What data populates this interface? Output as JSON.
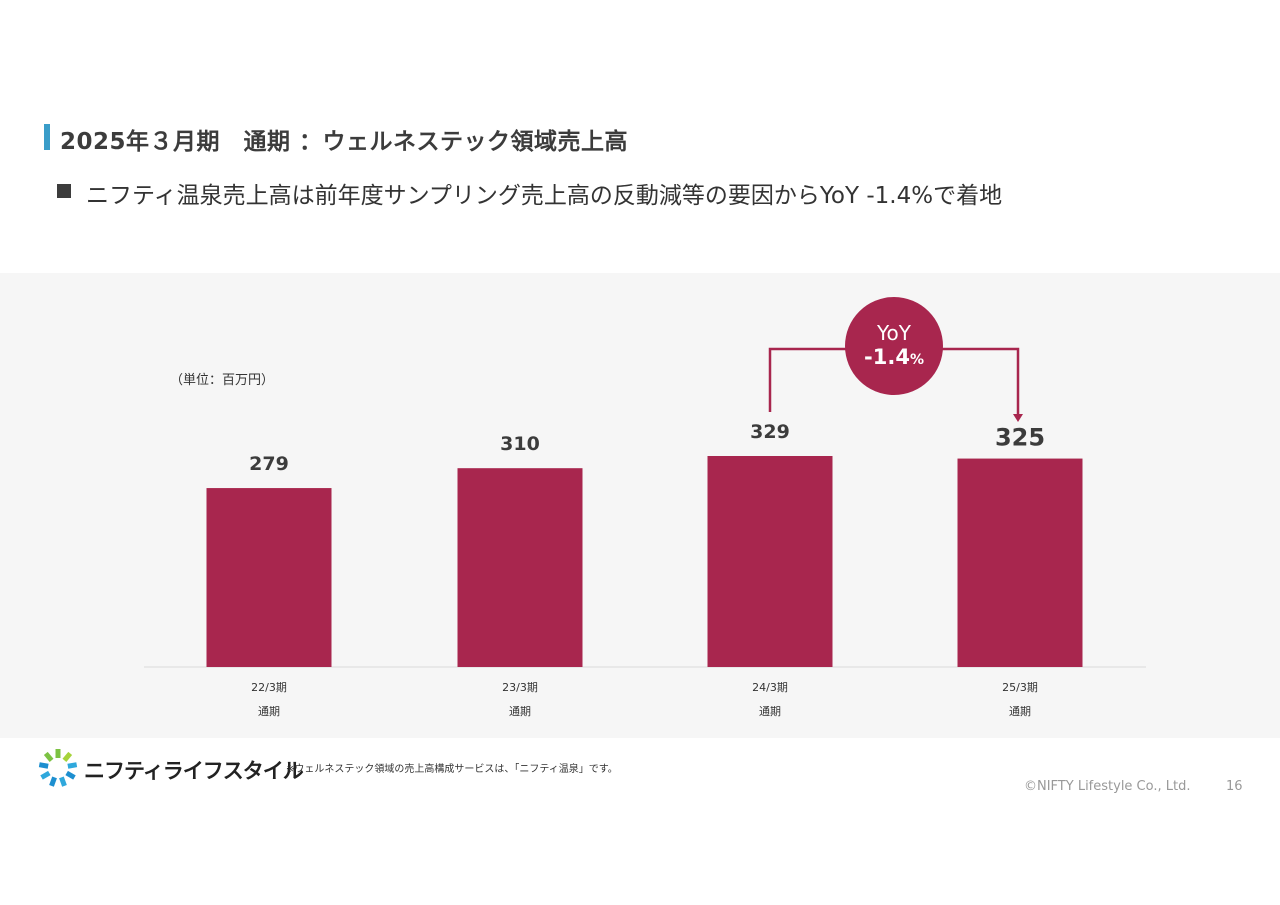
{
  "header": {
    "title": "2025年３月期　通期 ：ウェルネステック領域売上高",
    "bullet": "ニフティ温泉売上高は前年度サンプリング売上高の反動減等の要因からYoY -1.4%で着地"
  },
  "chart_data": {
    "type": "bar",
    "unit_label": "（単位：百万円）",
    "categories": [
      [
        "22/3期",
        "通期"
      ],
      [
        "23/3期",
        "通期"
      ],
      [
        "24/3期",
        "通期"
      ],
      [
        "25/3期",
        "通期"
      ]
    ],
    "values": [
      279,
      310,
      329,
      325
    ],
    "value_labels": [
      "279",
      "310",
      "329",
      "325"
    ],
    "bar_color": "#a8264e",
    "ylim": [
      0,
      400
    ],
    "annotation": {
      "line1": "YoY",
      "line2_value": "-1.4",
      "line2_unit": "%",
      "from_index": 2,
      "to_index": 3,
      "color": "#a8264e"
    }
  },
  "footer": {
    "footnote": "※ウェルネステック領域の売上高構成サービスは、「ニフティ温泉」です。",
    "logo_text": "ニフティライフスタイル",
    "copyright": "©NIFTY Lifestyle Co., Ltd.",
    "page_number": "16"
  }
}
